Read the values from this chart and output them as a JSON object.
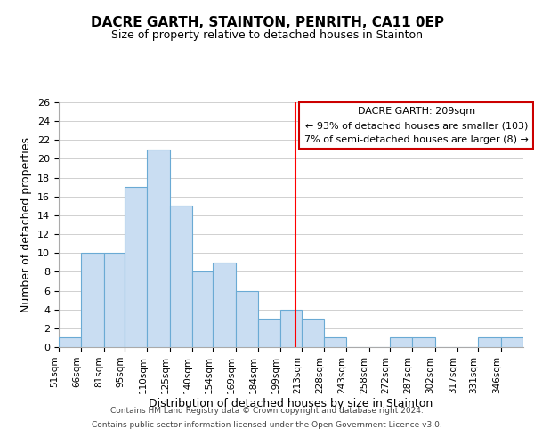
{
  "title": "DACRE GARTH, STAINTON, PENRITH, CA11 0EP",
  "subtitle": "Size of property relative to detached houses in Stainton",
  "xlabel": "Distribution of detached houses by size in Stainton",
  "ylabel": "Number of detached properties",
  "bin_labels": [
    "51sqm",
    "66sqm",
    "81sqm",
    "95sqm",
    "110sqm",
    "125sqm",
    "140sqm",
    "154sqm",
    "169sqm",
    "184sqm",
    "199sqm",
    "213sqm",
    "228sqm",
    "243sqm",
    "258sqm",
    "272sqm",
    "287sqm",
    "302sqm",
    "317sqm",
    "331sqm",
    "346sqm"
  ],
  "bar_heights": [
    1,
    10,
    10,
    17,
    21,
    15,
    8,
    9,
    6,
    3,
    4,
    3,
    1,
    0,
    0,
    1,
    1,
    0,
    0,
    1,
    1
  ],
  "bar_color": "#c9ddf2",
  "bar_edge_color": "#6aaad4",
  "vline_x": 209,
  "vline_color": "red",
  "annotation_title": "DACRE GARTH: 209sqm",
  "annotation_line1": "← 93% of detached houses are smaller (103)",
  "annotation_line2": "7% of semi-detached houses are larger (8) →",
  "annotation_box_color": "#ffffff",
  "annotation_box_edge": "#cc0000",
  "ylim": [
    0,
    26
  ],
  "yticks": [
    0,
    2,
    4,
    6,
    8,
    10,
    12,
    14,
    16,
    18,
    20,
    22,
    24,
    26
  ],
  "footer1": "Contains HM Land Registry data © Crown copyright and database right 2024.",
  "footer2": "Contains public sector information licensed under the Open Government Licence v3.0.",
  "bin_edges": [
    51,
    66,
    81,
    95,
    110,
    125,
    140,
    154,
    169,
    184,
    199,
    213,
    228,
    243,
    258,
    272,
    287,
    302,
    317,
    331,
    346,
    361
  ]
}
